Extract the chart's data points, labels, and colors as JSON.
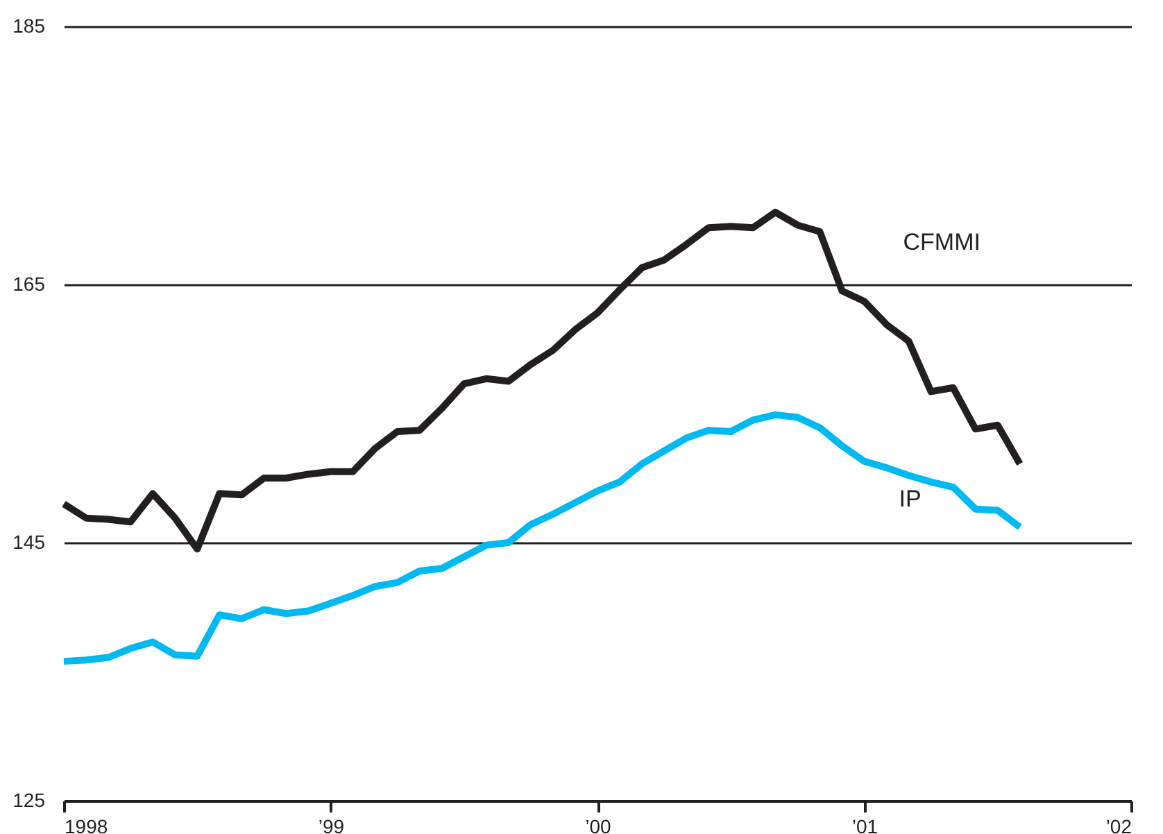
{
  "chart_data": {
    "type": "line",
    "x": [
      1998.0,
      1998.0833,
      1998.1667,
      1998.25,
      1998.3333,
      1998.4167,
      1998.5,
      1998.5833,
      1998.6667,
      1998.75,
      1998.8333,
      1998.9167,
      1999.0,
      1999.0833,
      1999.1667,
      1999.25,
      1999.3333,
      1999.4167,
      1999.5,
      1999.5833,
      1999.6667,
      1999.75,
      1999.8333,
      1999.9167,
      2000.0,
      2000.0833,
      2000.1667,
      2000.25,
      2000.3333,
      2000.4167,
      2000.5,
      2000.5833,
      2000.6667,
      2000.75,
      2000.8333,
      2000.9167,
      2001.0,
      2001.0833,
      2001.1667,
      2001.25,
      2001.3333,
      2001.4167,
      2001.5,
      2001.5833
    ],
    "series": [
      {
        "name": "CFMMI",
        "color": "#231f20",
        "values": [
          148.0,
          146.9,
          146.8,
          146.6,
          148.8,
          146.9,
          144.5,
          148.8,
          148.7,
          150.0,
          150.0,
          150.3,
          150.5,
          150.5,
          152.3,
          153.6,
          153.7,
          155.4,
          157.3,
          157.7,
          157.5,
          158.8,
          159.9,
          161.5,
          162.8,
          164.6,
          166.3,
          166.9,
          168.1,
          169.4,
          169.5,
          169.4,
          170.6,
          169.6,
          169.1,
          164.5,
          163.7,
          161.9,
          160.6,
          156.7,
          157.0,
          153.8,
          154.1,
          151.1
        ]
      },
      {
        "name": "IP",
        "color": "#00b9f1",
        "values": [
          135.8,
          135.9,
          136.1,
          136.8,
          137.3,
          136.3,
          136.2,
          139.4,
          139.1,
          139.8,
          139.5,
          139.7,
          140.3,
          140.9,
          141.6,
          141.9,
          142.8,
          143.0,
          143.9,
          144.8,
          145.0,
          146.4,
          147.2,
          148.1,
          149.0,
          149.7,
          151.1,
          152.1,
          153.1,
          153.7,
          153.6,
          154.5,
          154.9,
          154.7,
          153.9,
          152.5,
          151.3,
          150.8,
          150.2,
          149.7,
          149.3,
          147.6,
          147.5,
          146.2
        ]
      }
    ],
    "xlim": [
      1998,
      2002
    ],
    "xticks": [
      {
        "value": 1998,
        "label": "1998"
      },
      {
        "value": 1999,
        "label": "’99"
      },
      {
        "value": 2000,
        "label": "’00"
      },
      {
        "value": 2001,
        "label": "’01"
      },
      {
        "value": 2002,
        "label": "’02"
      }
    ],
    "ylim": [
      125,
      185
    ],
    "yticks": [
      125,
      145,
      165,
      185
    ],
    "grid": "y",
    "legend": false,
    "line_style": "solid",
    "marker": "none"
  }
}
